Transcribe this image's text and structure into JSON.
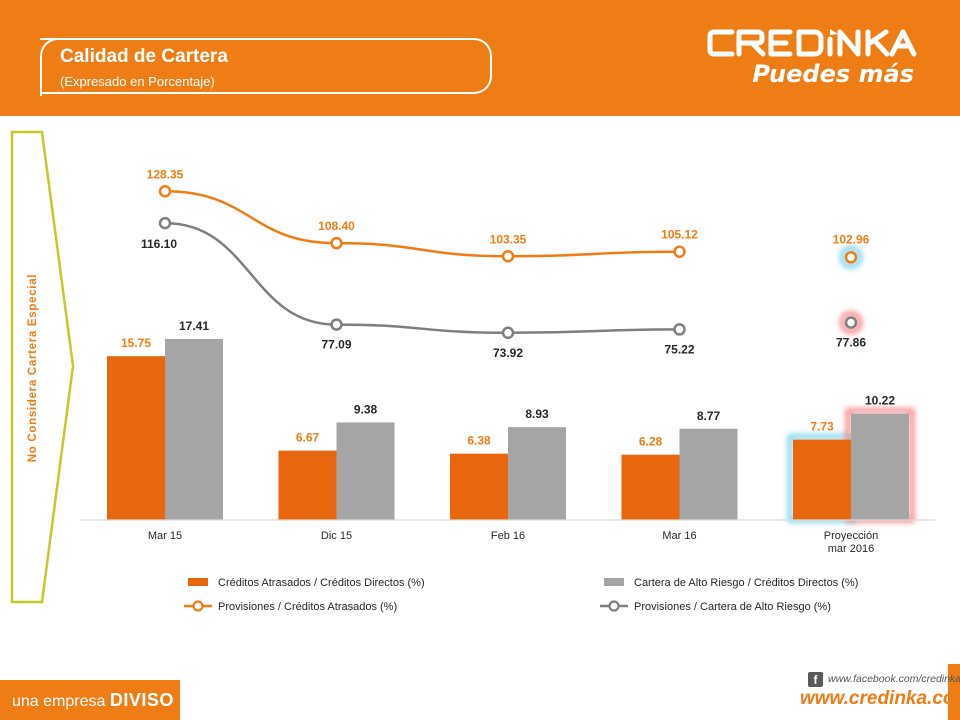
{
  "header": {
    "title": "Calidad de Cartera",
    "subtitle": "(Expresado en Porcentaje)"
  },
  "logo": {
    "wordmark": "CREDINKA",
    "tagline": "Puedes más"
  },
  "side_note": "No Considera Cartera Especial",
  "footer": {
    "prefix": "una empresa",
    "brand": "DIVISO",
    "facebook": "www.facebook.com/credinka",
    "website": "www.credinka.com"
  },
  "colors": {
    "brand_orange": "#ef7d16",
    "bar_orange": "#e8660d",
    "bar_gray": "#a5a5a5",
    "line_gray": "#7f7f7f",
    "side_arrow": "#c8c827",
    "halo_blue": "#7fd3ea",
    "halo_red": "#f2888a"
  },
  "chart_data": {
    "type": "bar",
    "categories": [
      "Mar 15",
      "Dic 15",
      "Feb 16",
      "Mar 16",
      "Proyección mar 2016"
    ],
    "series": [
      {
        "name": "Créditos Atrasados / Créditos Directos (%)",
        "kind": "bar",
        "color": "#e8660d",
        "values": [
          15.75,
          6.67,
          6.38,
          6.28,
          7.73
        ]
      },
      {
        "name": "Cartera de Alto Riesgo / Créditos Directos (%)",
        "kind": "bar",
        "color": "#a5a5a5",
        "values": [
          17.41,
          9.38,
          8.93,
          8.77,
          10.22
        ]
      },
      {
        "name": "Provisiones / Créditos Atrasados (%)",
        "kind": "line",
        "color": "#ef7d16",
        "values": [
          128.35,
          108.4,
          103.35,
          105.12,
          102.96
        ]
      },
      {
        "name": "Provisiones / Cartera de Alto Riesgo (%)",
        "kind": "line",
        "color": "#7f7f7f",
        "values": [
          116.1,
          77.09,
          73.92,
          75.22,
          77.86
        ]
      }
    ],
    "line_connects_last_point": false,
    "highlighted_category": "Proyección mar 2016",
    "legend_position": "bottom",
    "grid": false
  }
}
